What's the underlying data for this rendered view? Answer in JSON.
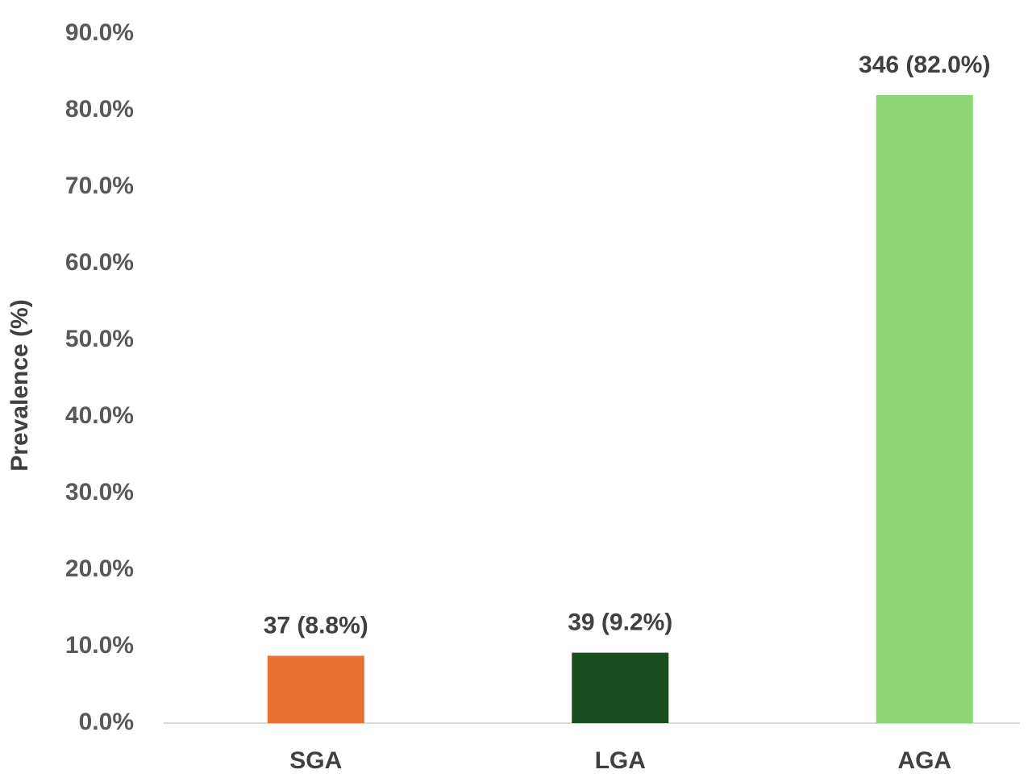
{
  "chart_data": {
    "type": "bar",
    "y_label": "Prevalence (%)",
    "categories": [
      "SGA",
      "LGA",
      "AGA"
    ],
    "values": [
      8.8,
      9.2,
      82.0
    ],
    "value_labels": [
      "37 (8.8%)",
      "39 (9.2%)",
      "346 (82.0%)"
    ],
    "colors": [
      "#e87035",
      "#1a4d1f",
      "#8cd673"
    ],
    "ylim": [
      0,
      90
    ],
    "yticks": [
      {
        "value": 0,
        "label": "0.0%"
      },
      {
        "value": 10,
        "label": "10.0%"
      },
      {
        "value": 20,
        "label": "20.0%"
      },
      {
        "value": 30,
        "label": "30.0%"
      },
      {
        "value": 40,
        "label": "40.0%"
      },
      {
        "value": 50,
        "label": "50.0%"
      },
      {
        "value": 60,
        "label": "60.0%"
      },
      {
        "value": 70,
        "label": "70.0%"
      },
      {
        "value": 80,
        "label": "80.0%"
      },
      {
        "value": 90,
        "label": "90.0%"
      }
    ],
    "grid": false
  }
}
